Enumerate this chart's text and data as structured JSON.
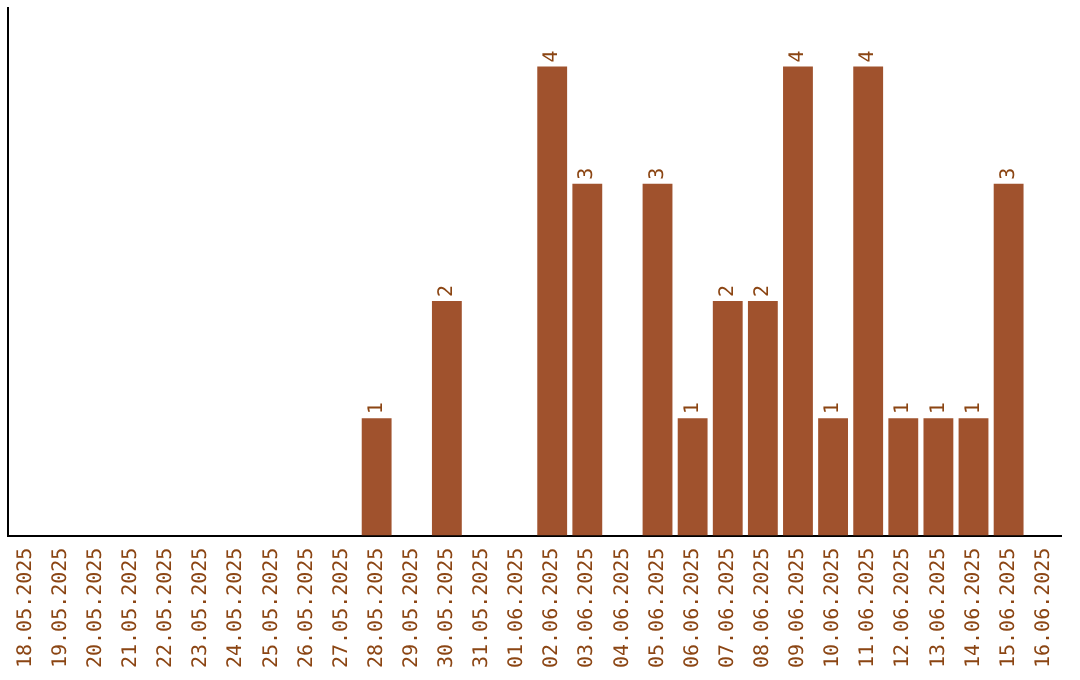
{
  "chart_data": {
    "type": "bar",
    "categories": [
      "18.05.2025",
      "19.05.2025",
      "20.05.2025",
      "21.05.2025",
      "22.05.2025",
      "23.05.2025",
      "24.05.2025",
      "25.05.2025",
      "26.05.2025",
      "27.05.2025",
      "28.05.2025",
      "29.05.2025",
      "30.05.2025",
      "31.05.2025",
      "01.06.2025",
      "02.06.2025",
      "03.06.2025",
      "04.06.2025",
      "05.06.2025",
      "06.06.2025",
      "07.06.2025",
      "08.06.2025",
      "09.06.2025",
      "10.06.2025",
      "11.06.2025",
      "12.06.2025",
      "13.06.2025",
      "14.06.2025",
      "15.06.2025",
      "16.06.2025"
    ],
    "values": [
      0,
      0,
      0,
      0,
      0,
      0,
      0,
      0,
      0,
      0,
      1,
      0,
      2,
      0,
      0,
      4,
      3,
      0,
      3,
      1,
      2,
      2,
      4,
      1,
      4,
      1,
      1,
      1,
      3,
      0
    ],
    "value_labels": [
      null,
      null,
      null,
      null,
      null,
      null,
      null,
      null,
      null,
      null,
      "1",
      null,
      "2",
      null,
      null,
      "4",
      "3",
      null,
      "3",
      "1",
      "2",
      "2",
      "4",
      "1",
      "4",
      "1",
      "1",
      "1",
      "3",
      null
    ],
    "color": "#a0522d",
    "grid": false,
    "legend": false,
    "tick_labels": "x"
  }
}
